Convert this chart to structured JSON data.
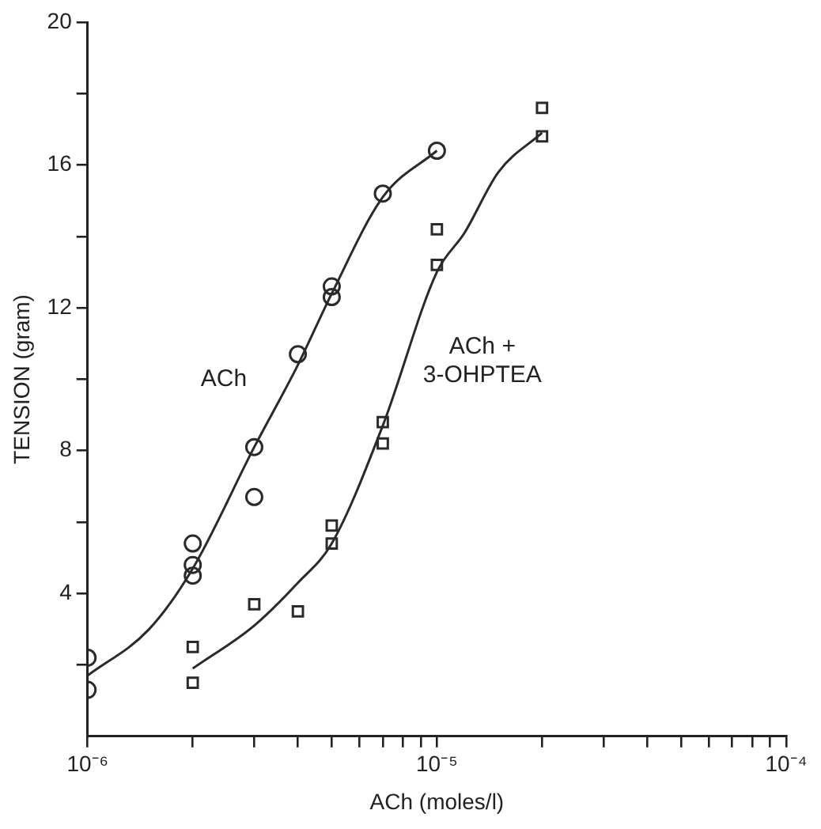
{
  "chart_data": {
    "type": "scatter",
    "xlabel": "ACh (moles/l)",
    "ylabel": "TENSION (gram)",
    "log": "x",
    "grid": false,
    "legend": false,
    "xlim": [
      1e-06,
      0.0001
    ],
    "ylim": [
      0,
      20
    ],
    "xticks": [
      {
        "value": 1e-06,
        "label": "10⁻⁶"
      },
      {
        "value": 2e-06,
        "label": null
      },
      {
        "value": 3e-06,
        "label": null
      },
      {
        "value": 4e-06,
        "label": null
      },
      {
        "value": 5e-06,
        "label": null
      },
      {
        "value": 6e-06,
        "label": null
      },
      {
        "value": 7e-06,
        "label": null
      },
      {
        "value": 8e-06,
        "label": null
      },
      {
        "value": 9e-06,
        "label": null
      },
      {
        "value": 1e-05,
        "label": "10⁻⁵"
      },
      {
        "value": 2e-05,
        "label": null
      },
      {
        "value": 3e-05,
        "label": null
      },
      {
        "value": 4e-05,
        "label": null
      },
      {
        "value": 5e-05,
        "label": null
      },
      {
        "value": 6e-05,
        "label": null
      },
      {
        "value": 7e-05,
        "label": null
      },
      {
        "value": 8e-05,
        "label": null
      },
      {
        "value": 9e-05,
        "label": null
      },
      {
        "value": 0.0001,
        "label": "10⁻⁴"
      }
    ],
    "yticks": [
      {
        "value": 2,
        "label": null
      },
      4,
      {
        "value": 6,
        "label": null
      },
      8,
      {
        "value": 10,
        "label": null
      },
      12,
      {
        "value": 14,
        "label": null
      },
      16,
      {
        "value": 18,
        "label": null
      },
      20
    ],
    "series": [
      {
        "marker": "circle",
        "color": "#2a2a2a",
        "x": [
          1e-06,
          1e-06,
          2e-06,
          2e-06,
          2e-06,
          3e-06,
          3e-06,
          4e-06,
          5e-06,
          5e-06,
          7e-06,
          1e-05
        ],
        "values": [
          2.2,
          1.3,
          5.4,
          4.8,
          4.5,
          8.1,
          6.7,
          10.7,
          12.6,
          12.3,
          15.2,
          16.4
        ]
      },
      {
        "marker": "square",
        "color": "#2a2a2a",
        "x": [
          2e-06,
          2e-06,
          3e-06,
          4e-06,
          5e-06,
          5e-06,
          7e-06,
          7e-06,
          1e-05,
          1e-05,
          2e-05,
          2e-05
        ],
        "values": [
          1.5,
          2.5,
          3.7,
          3.5,
          5.9,
          5.4,
          8.8,
          8.2,
          14.2,
          13.2,
          17.6,
          16.8
        ]
      },
      {
        "type": "line",
        "marker": "none",
        "line_style": "solid",
        "color": "#2a2a2a",
        "x": [
          1e-06,
          1.5e-06,
          2e-06,
          3e-06,
          4e-06,
          5e-06,
          7e-06,
          1e-05
        ],
        "values": [
          1.7,
          3.0,
          4.7,
          8.1,
          10.4,
          12.4,
          15.1,
          16.4
        ]
      },
      {
        "type": "line",
        "marker": "none",
        "line_style": "solid",
        "color": "#2a2a2a",
        "x": [
          2e-06,
          3e-06,
          4e-06,
          5e-06,
          7e-06,
          1e-05,
          1.2e-05,
          1.5e-05,
          2e-05
        ],
        "values": [
          1.9,
          3.1,
          4.3,
          5.4,
          8.7,
          13.0,
          14.1,
          15.8,
          16.9
        ]
      }
    ],
    "annotations": [
      "ACh",
      "ACh +\n3-OHPTEA"
    ]
  }
}
